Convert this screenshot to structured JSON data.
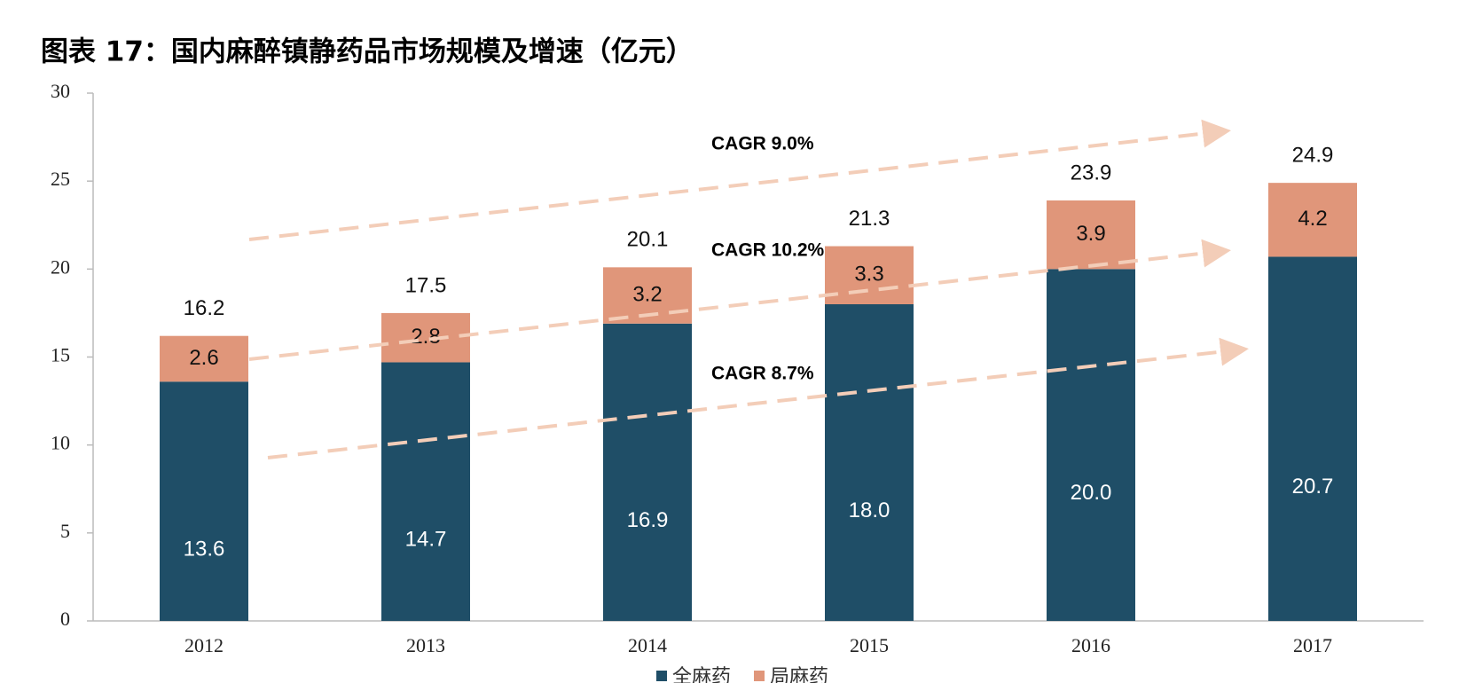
{
  "chart_data": {
    "type": "stacked_bar",
    "title": "图表 17：国内麻醉镇静药品市场规模及增速（亿元）",
    "categories": [
      "2012",
      "2013",
      "2014",
      "2015",
      "2016",
      "2017"
    ],
    "series": [
      {
        "name": "全麻药",
        "color": "#1f4e67",
        "values": [
          13.6,
          14.7,
          16.9,
          18.0,
          20.0,
          20.7
        ],
        "value_labels": [
          "13.6",
          "14.7",
          "16.9",
          "18.0",
          "20.0",
          "20.7"
        ]
      },
      {
        "name": "局麻药",
        "color": "#e0967a",
        "values": [
          2.6,
          2.8,
          3.2,
          3.3,
          3.9,
          4.2
        ]
      }
    ],
    "totals": [
      16.2,
      17.5,
      20.1,
      21.3,
      23.9,
      24.9
    ],
    "annotations": [
      "CAGR 9.0%",
      "CAGR 10.2%",
      "CAGR 8.7%"
    ],
    "ylim": [
      0,
      30
    ],
    "yticks": [
      0,
      5,
      10,
      15,
      20,
      25,
      30
    ]
  }
}
